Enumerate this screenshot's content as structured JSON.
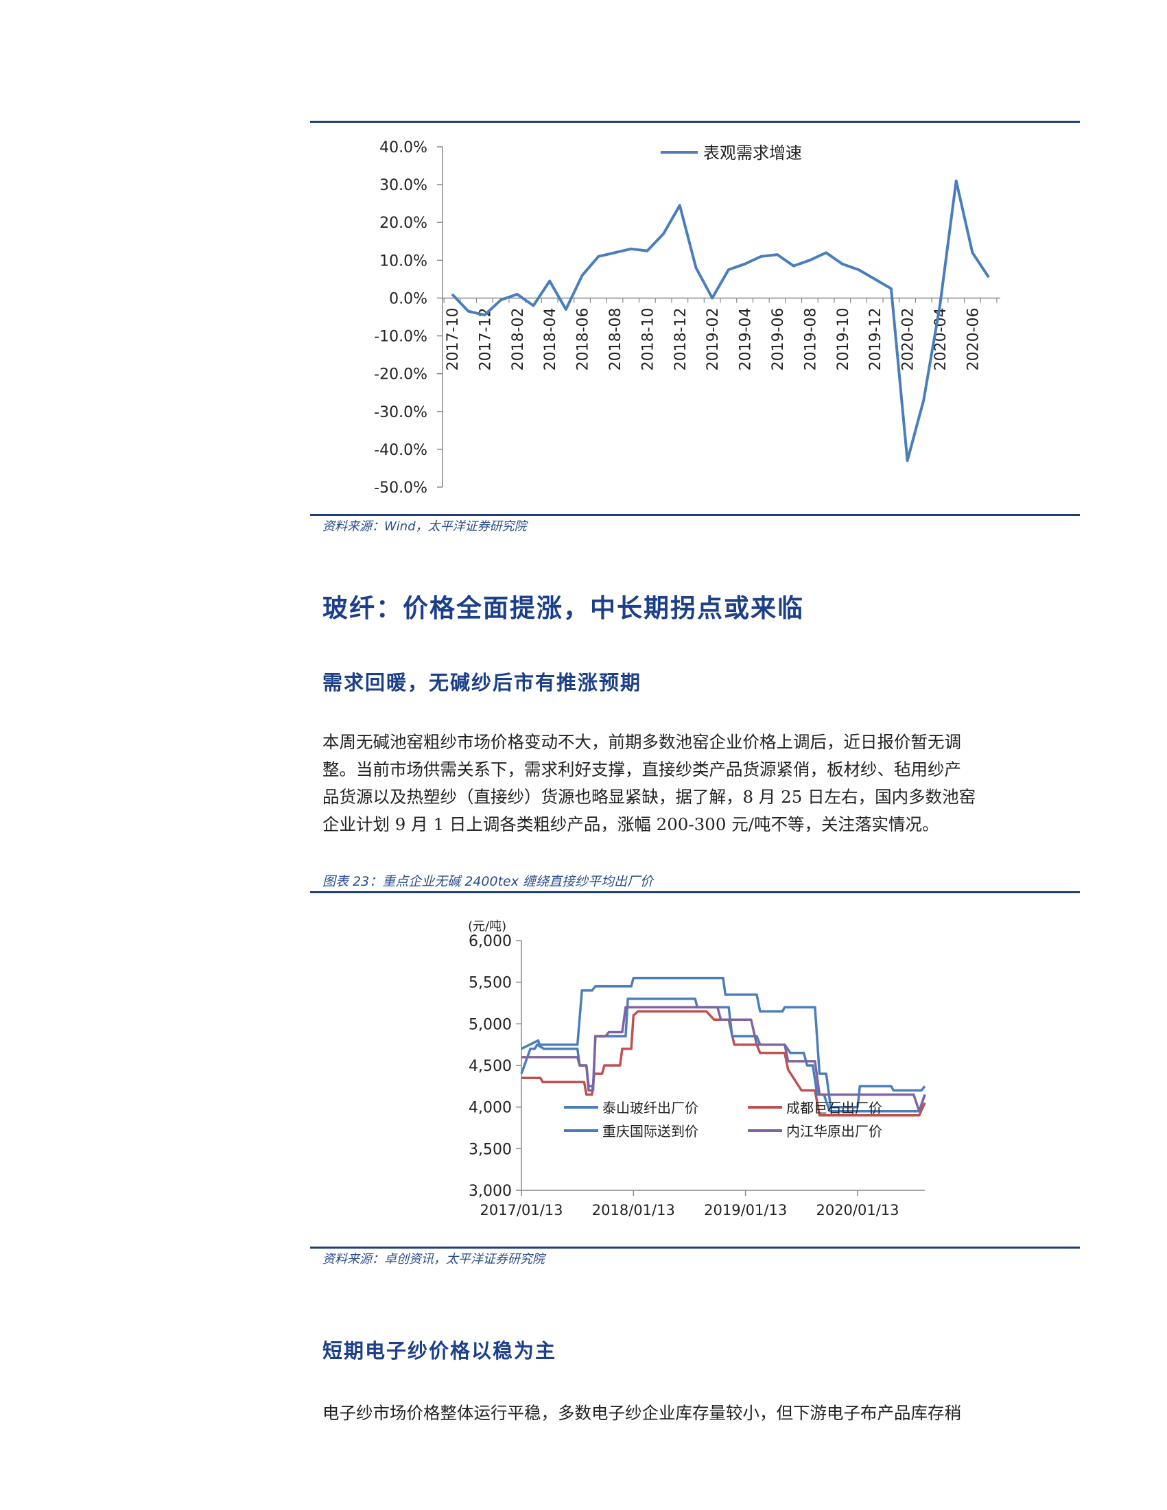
{
  "figure1": {
    "source": "资料来源：Wind，太平洋证券研究院"
  },
  "section": {
    "title": "玻纤：价格全面提涨，中长期拐点或来临",
    "sub1": "需求回暖，无碱纱后市有推涨预期",
    "para1": [
      "本周无碱池窑粗纱市场价格变动不大，前期多数池窑企业价格上调后，近日报价暂无调",
      "整。当前市场供需关系下，需求利好支撑，直接纱类产品货源紧俏，板材纱、毡用纱产",
      "品货源以及热塑纱（直接纱）货源也略显紧缺，据了解，8 月 25 日左右，国内多数池窑",
      "企业计划 9 月 1 日上调各类粗纱产品，涨幅 200-300 元/吨不等，关注落实情况。"
    ],
    "sub2": "短期电子纱价格以稳为主",
    "para2": "电子纱市场价格整体运行平稳，多数电子纱企业库存量较小，但下游电子布产品库存稍"
  },
  "figure2": {
    "caption": "图表 23：重点企业无碱 2400tex 缠绕直接纱平均出厂价",
    "source": "资料来源：卓创资讯，太平洋证券研究院"
  },
  "chart_data": [
    {
      "type": "line",
      "title": "",
      "legend_position": "top-right",
      "ylim": [
        -0.5,
        0.4
      ],
      "y_ticks": [
        "40.0%",
        "30.0%",
        "20.0%",
        "10.0%",
        "0.0%",
        "-10.0%",
        "-20.0%",
        "-30.0%",
        "-40.0%",
        "-50.0%"
      ],
      "x_tick_labels": [
        "2017-10",
        "2017-12",
        "2018-02",
        "2018-04",
        "2018-06",
        "2018-08",
        "2018-10",
        "2018-12",
        "2019-02",
        "2019-04",
        "2019-06",
        "2019-08",
        "2019-10",
        "2019-12",
        "2020-02",
        "2020-04",
        "2020-06"
      ],
      "x": [
        "2017-10",
        "2017-11",
        "2017-12",
        "2018-01",
        "2018-02",
        "2018-03",
        "2018-04",
        "2018-05",
        "2018-06",
        "2018-07",
        "2018-08",
        "2018-09",
        "2018-10",
        "2018-11",
        "2018-12",
        "2019-01",
        "2019-02",
        "2019-03",
        "2019-04",
        "2019-05",
        "2019-06",
        "2019-07",
        "2019-08",
        "2019-09",
        "2019-10",
        "2019-11",
        "2019-12",
        "2020-01",
        "2020-02",
        "2020-03",
        "2020-04",
        "2020-05",
        "2020-06",
        "2020-07"
      ],
      "series": [
        {
          "name": "表观需求增速",
          "color": "#4a7ebb",
          "values": [
            0.01,
            -0.035,
            -0.045,
            -0.005,
            0.01,
            -0.02,
            0.045,
            -0.03,
            0.06,
            0.11,
            0.12,
            0.13,
            0.125,
            0.17,
            0.245,
            0.08,
            0.0,
            0.075,
            0.09,
            0.11,
            0.115,
            0.085,
            0.1,
            0.12,
            0.09,
            0.075,
            0.05,
            0.025,
            -0.43,
            -0.27,
            -0.02,
            0.31,
            0.12,
            0.055
          ]
        }
      ]
    },
    {
      "type": "line",
      "ylabel": "(元/吨)",
      "ylim": [
        3000,
        6000
      ],
      "y_ticks": [
        "6,000",
        "5,500",
        "5,000",
        "4,500",
        "4,000",
        "3,500",
        "3,000"
      ],
      "x_tick_labels": [
        "2017/01/13",
        "2018/01/13",
        "2019/01/13",
        "2020/01/13"
      ],
      "x_range": [
        "2017-01",
        "2020-08"
      ],
      "legend_position": "inside-bottom",
      "series": [
        {
          "name": "泰山玻纤出厂价",
          "color": "#4a7ebb",
          "points": [
            [
              2017.0,
              4700
            ],
            [
              2017.15,
              4800
            ],
            [
              2017.16,
              4750
            ],
            [
              2017.5,
              4750
            ],
            [
              2017.54,
              5400
            ],
            [
              2017.63,
              5400
            ],
            [
              2017.66,
              5450
            ],
            [
              2017.98,
              5450
            ],
            [
              2018.0,
              5550
            ],
            [
              2018.8,
              5550
            ],
            [
              2018.82,
              5350
            ],
            [
              2019.1,
              5350
            ],
            [
              2019.13,
              5150
            ],
            [
              2019.33,
              5150
            ],
            [
              2019.35,
              5200
            ],
            [
              2019.62,
              5200
            ],
            [
              2019.66,
              4400
            ],
            [
              2019.72,
              4400
            ],
            [
              2019.76,
              4000
            ],
            [
              2020.0,
              4000
            ],
            [
              2020.02,
              4250
            ],
            [
              2020.3,
              4250
            ],
            [
              2020.32,
              4200
            ],
            [
              2020.57,
              4200
            ],
            [
              2020.6,
              4250
            ]
          ]
        },
        {
          "name": "成都巨石出厂价",
          "color": "#c0504d",
          "points": [
            [
              2017.0,
              4350
            ],
            [
              2017.17,
              4350
            ],
            [
              2017.19,
              4300
            ],
            [
              2017.56,
              4300
            ],
            [
              2017.58,
              4150
            ],
            [
              2017.63,
              4150
            ],
            [
              2017.65,
              4400
            ],
            [
              2017.72,
              4400
            ],
            [
              2017.74,
              4500
            ],
            [
              2017.88,
              4500
            ],
            [
              2017.9,
              4700
            ],
            [
              2017.98,
              4700
            ],
            [
              2018.0,
              5100
            ],
            [
              2018.04,
              5150
            ],
            [
              2018.65,
              5150
            ],
            [
              2018.72,
              5050
            ],
            [
              2018.85,
              5050
            ],
            [
              2018.9,
              4750
            ],
            [
              2019.1,
              4750
            ],
            [
              2019.13,
              4650
            ],
            [
              2019.35,
              4650
            ],
            [
              2019.38,
              4450
            ],
            [
              2019.5,
              4200
            ],
            [
              2019.62,
              4200
            ],
            [
              2019.66,
              3900
            ],
            [
              2020.55,
              3900
            ],
            [
              2020.6,
              4050
            ]
          ]
        },
        {
          "name": "重庆国际送到价",
          "color": "#4a7ebb",
          "points": [
            [
              2017.0,
              4400
            ],
            [
              2017.08,
              4700
            ],
            [
              2017.12,
              4700
            ],
            [
              2017.14,
              4750
            ],
            [
              2017.2,
              4700
            ],
            [
              2017.5,
              4700
            ],
            [
              2017.52,
              4500
            ],
            [
              2017.58,
              4500
            ],
            [
              2017.6,
              4250
            ],
            [
              2017.64,
              4250
            ],
            [
              2017.66,
              4850
            ],
            [
              2017.93,
              4850
            ],
            [
              2017.95,
              5300
            ],
            [
              2018.55,
              5300
            ],
            [
              2018.57,
              5200
            ],
            [
              2018.85,
              5200
            ],
            [
              2018.88,
              4850
            ],
            [
              2019.1,
              4850
            ],
            [
              2019.13,
              4750
            ],
            [
              2019.35,
              4750
            ],
            [
              2019.4,
              4650
            ],
            [
              2019.52,
              4650
            ],
            [
              2019.55,
              4500
            ],
            [
              2019.6,
              4500
            ],
            [
              2019.64,
              4150
            ],
            [
              2019.7,
              4150
            ],
            [
              2019.75,
              3950
            ],
            [
              2020.2,
              3950
            ],
            [
              2020.22,
              3950
            ],
            [
              2020.55,
              3950
            ],
            [
              2020.6,
              4150
            ]
          ]
        },
        {
          "name": "内江华原出厂价",
          "color": "#8064a2",
          "points": [
            [
              2017.0,
              4600
            ],
            [
              2017.2,
              4600
            ],
            [
              2017.5,
              4600
            ],
            [
              2017.52,
              4500
            ],
            [
              2017.58,
              4500
            ],
            [
              2017.6,
              4200
            ],
            [
              2017.64,
              4200
            ],
            [
              2017.66,
              4850
            ],
            [
              2017.75,
              4850
            ],
            [
              2017.78,
              4900
            ],
            [
              2017.9,
              4900
            ],
            [
              2017.93,
              5200
            ],
            [
              2018.75,
              5200
            ],
            [
              2018.78,
              5050
            ],
            [
              2019.05,
              5050
            ],
            [
              2019.1,
              4750
            ],
            [
              2019.35,
              4750
            ],
            [
              2019.38,
              4550
            ],
            [
              2019.62,
              4550
            ],
            [
              2019.66,
              4150
            ],
            [
              2020.5,
              4150
            ],
            [
              2020.55,
              3950
            ],
            [
              2020.6,
              4150
            ]
          ]
        }
      ]
    }
  ]
}
